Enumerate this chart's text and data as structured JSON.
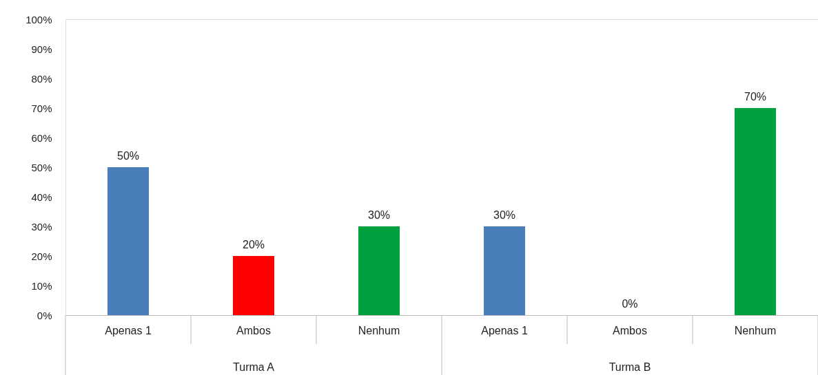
{
  "chart_data": {
    "type": "bar",
    "categories": [
      "Apenas 1",
      "Ambos",
      "Nenhum",
      "Apenas 1",
      "Ambos",
      "Nenhum"
    ],
    "values": [
      50,
      20,
      30,
      30,
      0,
      70
    ],
    "colors": [
      "#4a7ebb",
      "#ff0000",
      "#00a03e",
      "#4a7ebb",
      "#ff0000",
      "#00a03e"
    ],
    "value_labels": [
      "50%",
      "20%",
      "30%",
      "30%",
      "0%",
      "70%"
    ],
    "ylim": [
      0,
      100
    ],
    "yticks": [
      {
        "value": 0,
        "label": "0%"
      },
      {
        "value": 10,
        "label": "10%"
      },
      {
        "value": 20,
        "label": "20%"
      },
      {
        "value": 30,
        "label": "30%"
      },
      {
        "value": 40,
        "label": "40%"
      },
      {
        "value": 50,
        "label": "50%"
      },
      {
        "value": 60,
        "label": "60%"
      },
      {
        "value": 70,
        "label": "70%"
      },
      {
        "value": 80,
        "label": "80%"
      },
      {
        "value": 90,
        "label": "90%"
      },
      {
        "value": 100,
        "label": "100%"
      }
    ],
    "annotations": [
      "Turma A",
      "Turma B"
    ],
    "grid": false
  }
}
